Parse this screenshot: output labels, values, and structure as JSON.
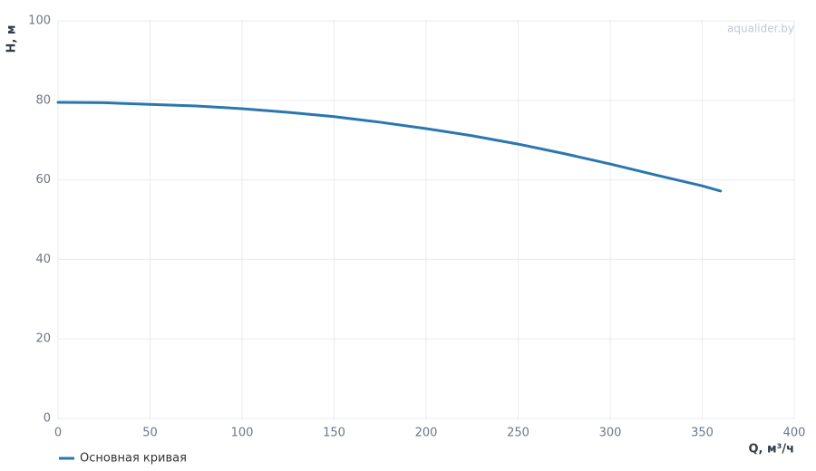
{
  "chart_data": {
    "type": "line",
    "xlabel": "Q, м³/ч",
    "ylabel": "H, м",
    "watermark": "aqualider.by",
    "x": [
      0,
      25,
      50,
      75,
      100,
      125,
      150,
      175,
      200,
      225,
      250,
      275,
      300,
      325,
      350,
      360
    ],
    "series": [
      {
        "name": "Основная кривая",
        "color": "#2a77b0",
        "values": [
          79.5,
          79.4,
          79.0,
          78.6,
          77.9,
          77.0,
          75.9,
          74.5,
          72.9,
          71.1,
          69.0,
          66.6,
          64.0,
          61.2,
          58.5,
          57.2
        ]
      }
    ],
    "xlim": [
      0,
      400
    ],
    "xticks": [
      0,
      50,
      100,
      150,
      200,
      250,
      300,
      350,
      400
    ],
    "ylim": [
      0,
      100
    ],
    "yticks": [
      0,
      20,
      40,
      60,
      80,
      100
    ],
    "grid": true
  }
}
